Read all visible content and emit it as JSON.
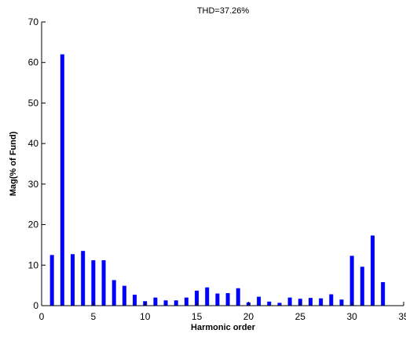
{
  "chart_data": {
    "type": "bar",
    "title": "THD=37.26%",
    "xlabel": "Harmonic order",
    "ylabel": "Mag(% of Fund)",
    "xlim": [
      0,
      35
    ],
    "ylim": [
      0,
      70
    ],
    "xticks": [
      0,
      5,
      10,
      15,
      20,
      25,
      30,
      35
    ],
    "yticks": [
      0,
      10,
      20,
      30,
      40,
      50,
      60,
      70
    ],
    "grid": false,
    "bar_color": "#0000ff",
    "series": [
      {
        "x": [
          1,
          2,
          3,
          4,
          5,
          6,
          7,
          8,
          9,
          10,
          11,
          12,
          13,
          14,
          15,
          16,
          17,
          18,
          19,
          20,
          21,
          22,
          23,
          24,
          25,
          26,
          27,
          28,
          29,
          30,
          31,
          32,
          33
        ],
        "values": [
          12.5,
          62.0,
          12.7,
          13.5,
          11.2,
          11.2,
          6.3,
          4.9,
          2.7,
          1.1,
          2.0,
          1.3,
          1.3,
          2.0,
          3.7,
          4.5,
          3.0,
          3.1,
          4.3,
          0.8,
          2.2,
          1.0,
          0.7,
          2.0,
          1.7,
          1.9,
          1.8,
          2.8,
          1.5,
          12.3,
          9.6,
          17.3,
          5.8
        ]
      }
    ]
  }
}
